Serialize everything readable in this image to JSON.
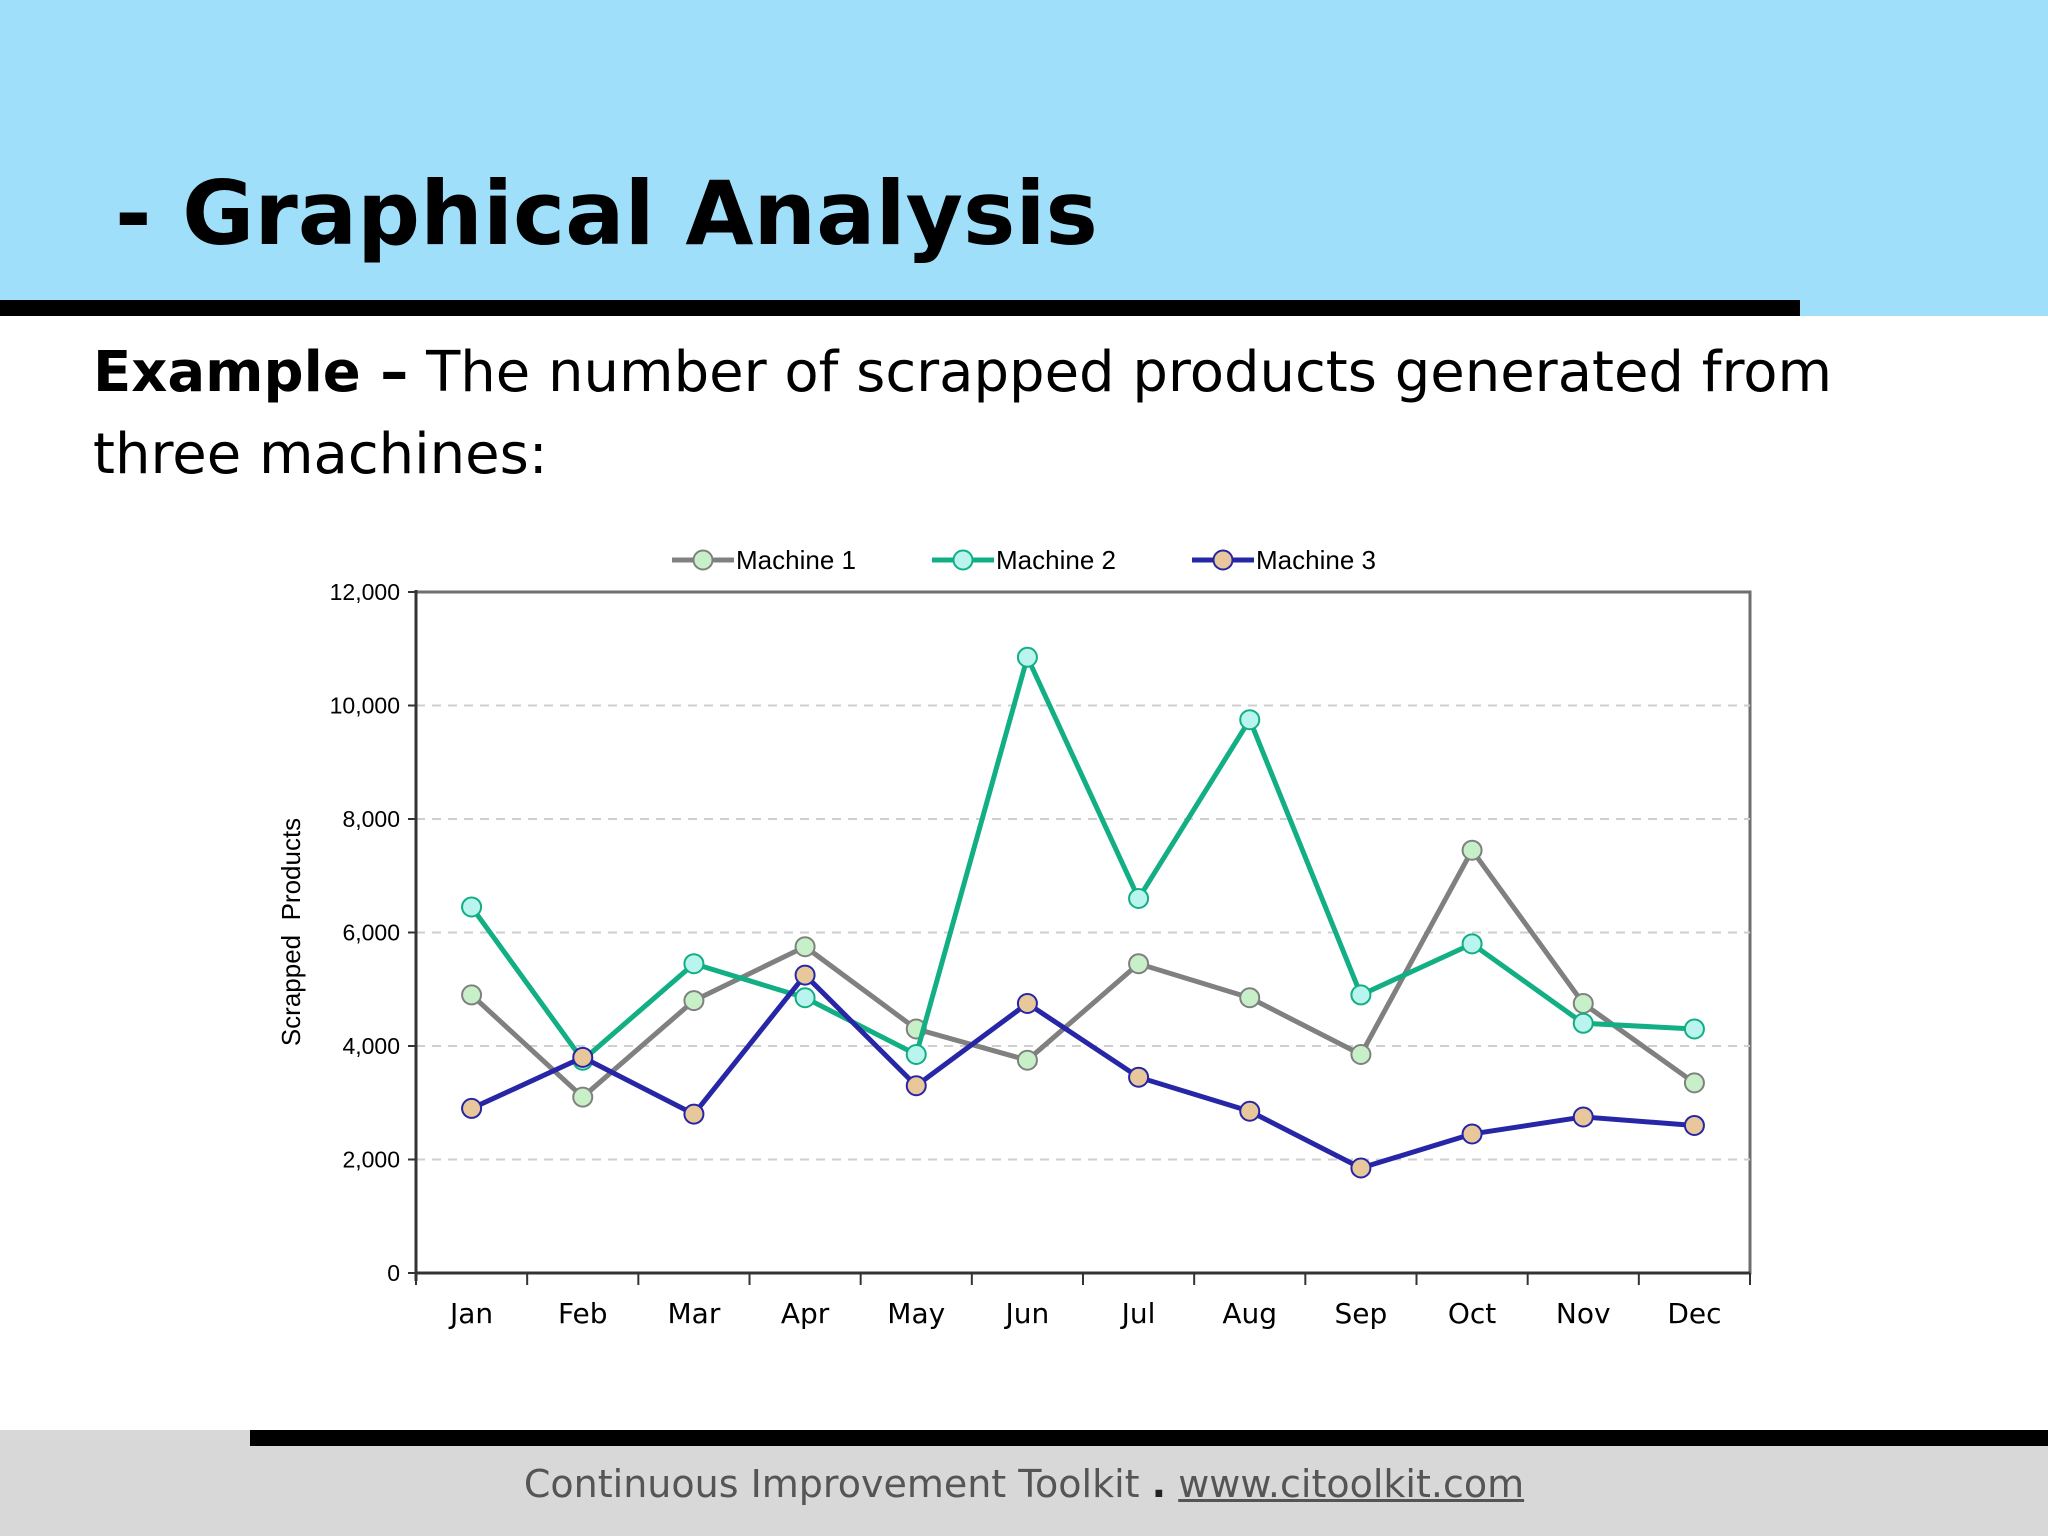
{
  "slide": {
    "title": "- Graphical Analysis",
    "subtitle_bold": "Example –",
    "subtitle_text": " The number of scrapped products generated from three machines:"
  },
  "footer": {
    "text": "Continuous Improvement Toolkit",
    "separator": ".",
    "link": "www.citoolkit.com"
  },
  "chart_data": {
    "type": "line",
    "categories": [
      "Jan",
      "Feb",
      "Mar",
      "Apr",
      "May",
      "Jun",
      "Jul",
      "Aug",
      "Sep",
      "Oct",
      "Nov",
      "Dec"
    ],
    "series": [
      {
        "name": "Machine 1",
        "line_color": "#808080",
        "marker_color": "#c8f0c8",
        "values": [
          4900,
          3100,
          4800,
          5750,
          4300,
          3750,
          5450,
          4850,
          3850,
          7450,
          4750,
          3350
        ]
      },
      {
        "name": "Machine 2",
        "line_color": "#12ae84",
        "marker_color": "#b9f5ee",
        "values": [
          6450,
          3750,
          5450,
          4850,
          3850,
          10850,
          6600,
          9750,
          4900,
          5800,
          4400,
          4300
        ]
      },
      {
        "name": "Machine 3",
        "line_color": "#2626a6",
        "marker_color": "#e8c79a",
        "values": [
          2900,
          3800,
          2800,
          5250,
          3300,
          4750,
          3450,
          2850,
          1850,
          2450,
          2750,
          2600
        ]
      }
    ],
    "ylabel": "Scrapped  Products",
    "xlabel": "",
    "ylim": [
      0,
      12000
    ],
    "yticks": [
      0,
      2000,
      4000,
      6000,
      8000,
      10000,
      12000
    ],
    "ytick_labels": [
      "0",
      "2,000",
      "4,000",
      "6,000",
      "8,000",
      "10,000",
      "12,000"
    ],
    "grid": "horizontal dashed",
    "legend_position": "top-center"
  }
}
